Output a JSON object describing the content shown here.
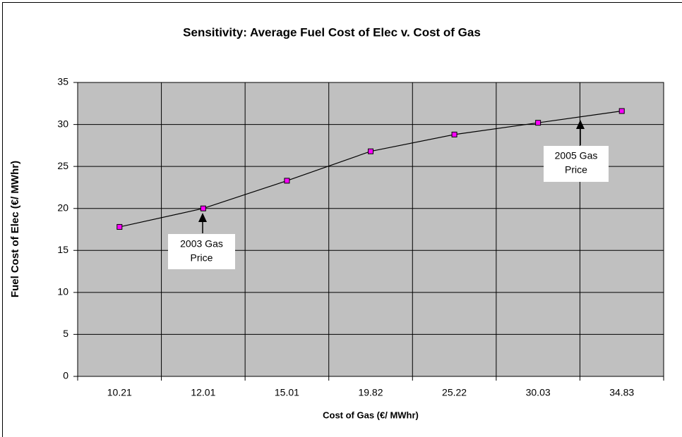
{
  "chart_data": {
    "type": "line",
    "title": "Sensitivity:  Average Fuel Cost of Elec  v.  Cost of Gas",
    "x_label": "Cost of Gas (€/ MWhr)",
    "y_label": "Fuel Cost of Elec (€/ MWhr)",
    "categories": [
      "10.21",
      "12.01",
      "15.01",
      "19.82",
      "25.22",
      "30.03",
      "34.83"
    ],
    "values": [
      17.8,
      20.0,
      23.3,
      26.8,
      28.8,
      30.2,
      31.6
    ],
    "color": "#000000",
    "marker_color": "#ff00ff",
    "plot_background": "#c0c0c0",
    "ylim": [
      0,
      35
    ],
    "yticks": [
      0,
      5,
      10,
      15,
      20,
      25,
      30,
      35
    ],
    "grid": true,
    "annotations": [
      {
        "lines": [
          "2003 Gas",
          "Price"
        ]
      },
      {
        "lines": [
          "2005 Gas",
          "Price"
        ]
      }
    ]
  }
}
